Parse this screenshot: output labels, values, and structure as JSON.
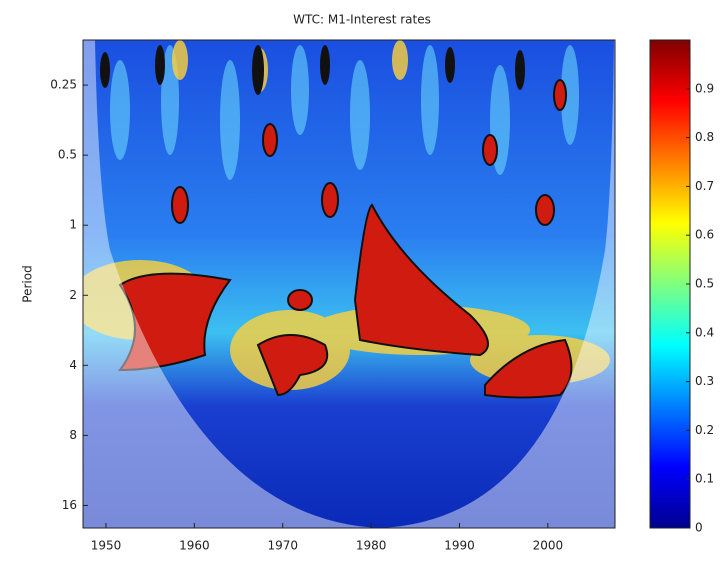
{
  "chart_data": {
    "type": "heatmap",
    "title": "WTC: M1-Interest rates",
    "y_label": "Period",
    "xlim": [
      1947.4,
      2007.6
    ],
    "xticks": [
      1950,
      1960,
      1970,
      1980,
      1990,
      2000
    ],
    "ylim": [
      0.16,
      20
    ],
    "y_log_base": 2,
    "yticks": [
      0.25,
      0.5,
      1,
      2,
      4,
      8,
      16
    ],
    "colormap": "jet",
    "clim": [
      0,
      1
    ],
    "cticks": [
      0,
      0.1,
      0.2,
      0.3,
      0.4,
      0.5,
      0.6,
      0.7,
      0.8,
      0.9
    ]
  }
}
